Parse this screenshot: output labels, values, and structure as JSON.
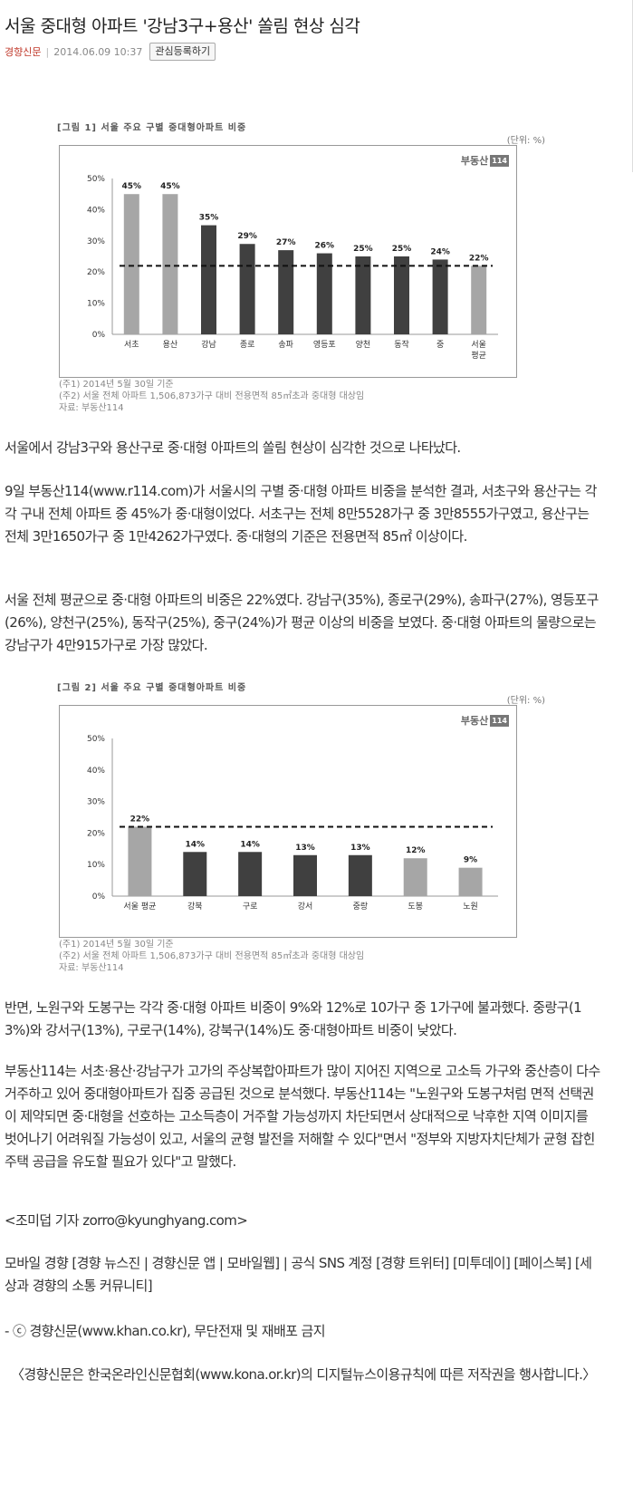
{
  "article": {
    "title": "서울 중대형 아파트 '강남3구+용산' 쏠림 현상 심각",
    "source": "경향신문",
    "date": "2014.06.09 10:37",
    "interest_button": "관심등록하기"
  },
  "figures": [
    {
      "caption": "[그림 1] 서울 주요 구별 중대형아파트 비중",
      "unit": "(단위: %)",
      "logo": "부동산",
      "logo_badge": "114",
      "notes": [
        "(주1) 2014년 5월 30일 기준",
        "(주2) 서울 전체 아파트 1,506,873가구 대비 전용면적 85㎡초과 중대형 대상임",
        "자료: 부동산114"
      ]
    },
    {
      "caption": "[그림 2] 서울 주요 구별 중대형아파트 비중",
      "unit": "(단위: %)",
      "logo": "부동산",
      "logo_badge": "114",
      "notes": [
        "(주1) 2014년 5월 30일 기준",
        "(주2) 서울 전체 아파트 1,506,873가구 대비 전용면적 85㎡초과 중대형 대상임",
        "자료: 부동산114"
      ]
    }
  ],
  "chart_data": [
    {
      "type": "bar",
      "title": "[그림 1] 서울 주요 구별 중대형아파트 비중",
      "unit": "(단위: %)",
      "categories": [
        "서초",
        "용산",
        "강남",
        "종로",
        "송파",
        "영등포",
        "양천",
        "동작",
        "중",
        "서울 평균"
      ],
      "values": [
        45,
        45,
        35,
        29,
        27,
        26,
        25,
        25,
        24,
        22
      ],
      "labels": [
        "45%",
        "45%",
        "35%",
        "29%",
        "27%",
        "26%",
        "25%",
        "25%",
        "24%",
        "22%"
      ],
      "bar_colors": [
        "#a6a6a6",
        "#a6a6a6",
        "#404040",
        "#404040",
        "#404040",
        "#404040",
        "#404040",
        "#404040",
        "#404040",
        "#a6a6a6"
      ],
      "reference_line": 22,
      "yticks": [
        "0%",
        "10%",
        "20%",
        "30%",
        "40%",
        "50%"
      ],
      "ylim": [
        0,
        50
      ],
      "grid": false
    },
    {
      "type": "bar",
      "title": "[그림 2] 서울 주요 구별 중대형아파트 비중",
      "unit": "(단위: %)",
      "categories": [
        "서울 평균",
        "강북",
        "구로",
        "강서",
        "중랑",
        "도봉",
        "노원"
      ],
      "values": [
        22,
        14,
        14,
        13,
        13,
        12,
        9
      ],
      "labels": [
        "22%",
        "14%",
        "14%",
        "13%",
        "13%",
        "12%",
        "9%"
      ],
      "bar_colors": [
        "#a6a6a6",
        "#404040",
        "#404040",
        "#404040",
        "#404040",
        "#a6a6a6",
        "#a6a6a6"
      ],
      "reference_line": 22,
      "yticks": [
        "0%",
        "10%",
        "20%",
        "30%",
        "40%",
        "50%"
      ],
      "ylim": [
        0,
        50
      ],
      "grid": false
    }
  ],
  "body": {
    "p1": "서울에서 강남3구와 용산구로 중·대형 아파트의 쏠림 현상이 심각한 것으로 나타났다.",
    "p2": "9일 부동산114(www.r114.com)가 서울시의 구별 중·대형 아파트 비중을 분석한 결과, 서초구와 용산구는 각각 구내 전체 아파트 중 45%가 중·대형이었다. 서초구는 전체 8만5528가구 중 3만8555가구였고, 용산구는 전체 3만1650가구 중 1만4262가구였다. 중·대형의 기준은 전용면적 85㎡ 이상이다.",
    "p3": "서울 전체 평균으로 중·대형 아파트의 비중은 22%였다. 강남구(35%), 종로구(29%), 송파구(27%), 영등포구(26%), 양천구(25%), 동작구(25%), 중구(24%)가 평균 이상의 비중을 보였다. 중·대형 아파트의 물량으로는 강남구가 4만915가구로 가장 많았다.",
    "p4": "반면, 노원구와 도봉구는 각각 중·대형 아파트 비중이 9%와 12%로 10가구 중 1가구에 불과했다. 중랑구(13%)와 강서구(13%), 구로구(14%), 강북구(14%)도 중·대형아파트 비중이 낮았다.",
    "p5": "부동산114는 서초·용산·강남구가 고가의 주상복합아파트가 많이 지어진 지역으로 고소득 가구와 중산층이 다수 거주하고 있어 중대형아파트가 집중 공급된 것으로 분석했다. 부동산114는 \"노원구와 도봉구처럼 면적 선택권이 제약되면 중·대형을 선호하는 고소득층이 거주할 가능성까지 차단되면서 상대적으로 낙후한 지역 이미지를 벗어나기 어려워질 가능성이 있고, 서울의 균형 발전을 저해할 수 있다\"면서 \"정부와 지방자치단체가 균형 잡힌 주택 공급을 유도할 필요가 있다\"고 말했다.",
    "byline": "<조미덥 기자 zorro@kyunghyang.com>",
    "promo": "모바일 경향 [경향 뉴스진 | 경향신문 앱 | 모바일웹] | 공식 SNS 계정 [경향 트위터] [미투데이] [페이스북] [세상과 경향의 소통 커뮤니티]",
    "copyright": "- ⓒ 경향신문(www.khan.co.kr), 무단전재 및 재배포 금지",
    "kona": "〈경향신문은 한국온라인신문협회(www.kona.or.kr)의 디지털뉴스이용규칙에 따른 저작권을 행사합니다.〉"
  }
}
